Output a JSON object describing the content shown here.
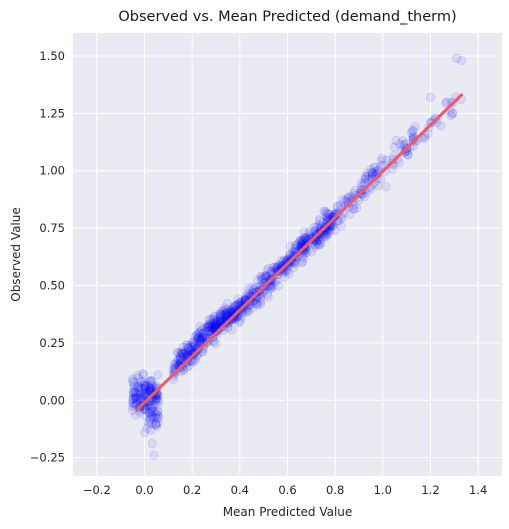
{
  "chart_data": {
    "type": "scatter",
    "title": "Observed vs. Mean Predicted (demand_therm)",
    "xlabel": "Mean Predicted Value",
    "ylabel": "Observed Value",
    "xlim": [
      -0.3,
      1.5
    ],
    "ylim": [
      -0.33,
      1.6
    ],
    "x_ticks": [
      "−0.2",
      "0.0",
      "0.2",
      "0.4",
      "0.6",
      "0.8",
      "1.0",
      "1.2",
      "1.4"
    ],
    "x_tick_values": [
      -0.2,
      0.0,
      0.2,
      0.4,
      0.6,
      0.8,
      1.0,
      1.2,
      1.4
    ],
    "y_ticks": [
      "−0.25",
      "0.00",
      "0.25",
      "0.50",
      "0.75",
      "1.00",
      "1.25",
      "1.50"
    ],
    "y_tick_values": [
      -0.25,
      0.0,
      0.25,
      0.5,
      0.75,
      1.0,
      1.25,
      1.5
    ],
    "grid": true,
    "background": "#eaeaf2",
    "grid_color": "#ffffff",
    "point_color": "#0000ff",
    "point_alpha": 0.08,
    "line_color": "#f05a64",
    "fit_line": {
      "x": [
        -0.03,
        1.33
      ],
      "y": [
        -0.04,
        1.33
      ]
    },
    "point_clusters": [
      {
        "x_range": [
          -0.05,
          0.06
        ],
        "y_center": 0.02,
        "y_spread": 0.07,
        "count": 140
      },
      {
        "x_range": [
          0.0,
          0.06
        ],
        "y_center": -0.08,
        "y_spread": 0.06,
        "count": 30
      },
      {
        "x_range": [
          0.12,
          0.35
        ],
        "y_offset": 0.02,
        "y_spread": 0.05,
        "count": 260
      },
      {
        "x_range": [
          0.35,
          0.8
        ],
        "y_offset": 0.0,
        "y_spread": 0.045,
        "count": 420
      },
      {
        "x_range": [
          0.8,
          1.15
        ],
        "y_offset": 0.01,
        "y_spread": 0.05,
        "count": 120
      },
      {
        "x_range": [
          1.15,
          1.33
        ],
        "y_offset": 0.0,
        "y_spread": 0.04,
        "count": 22
      }
    ],
    "outliers": [
      [
        1.31,
        1.49
      ],
      [
        1.33,
        1.48
      ],
      [
        0.04,
        -0.24
      ],
      [
        1.2,
        1.32
      ]
    ]
  }
}
